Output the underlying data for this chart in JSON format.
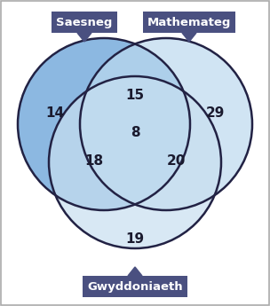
{
  "title_saesneg": "Saesneg",
  "title_mathemateg": "Mathemateg",
  "title_gwyddoniaeth": "Gwyddoniaeth",
  "label_color": "#4a5080",
  "circle_saesneg_color": "#5b9bd5",
  "circle_mathemateg_color": "#bcd9ee",
  "circle_gwyddoniaeth_color": "#c8dff0",
  "circle_edge_color": "#222244",
  "val_saesneg_only": "14",
  "val_mathemateg_only": "29",
  "val_gwyddoniaeth_only": "19",
  "val_saesneg_mathemateg": "15",
  "val_saesneg_gwyddoniaeth": "18",
  "val_mathemateg_gwyddoniaeth": "20",
  "val_all_three": "8",
  "bg_color": "#ffffff",
  "border_color": "#aaaaaa",
  "text_color": "#1a1a2e",
  "number_fontsize": 11,
  "label_fontsize": 9.5
}
